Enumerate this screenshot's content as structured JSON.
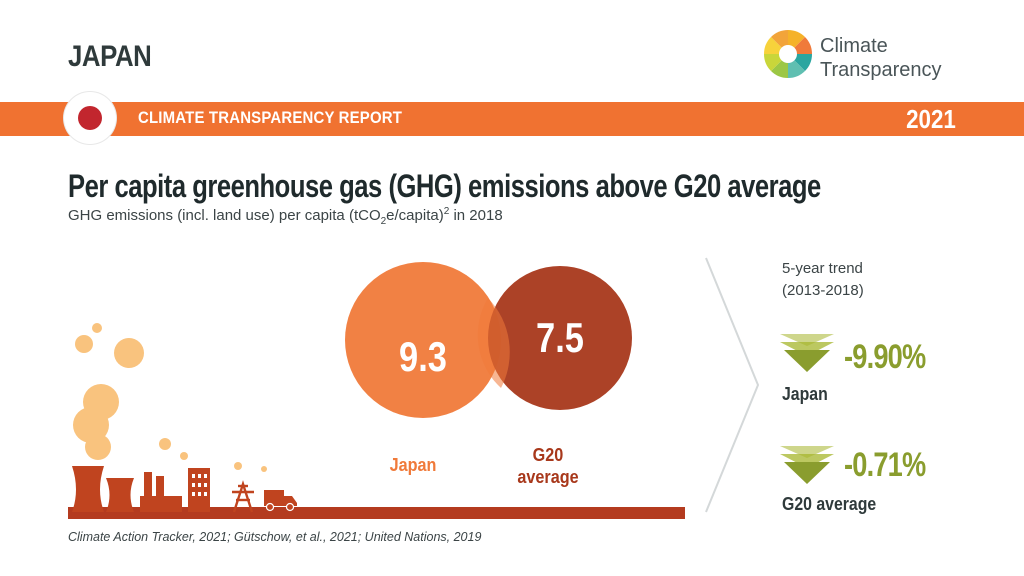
{
  "header": {
    "country": "JAPAN",
    "logo_line1": "Climate",
    "logo_line2": "Transparency",
    "report_label": "CLIMATE TRANSPARENCY REPORT",
    "year": "2021"
  },
  "headline": "Per capita greenhouse gas (GHG) emissions above G20 average",
  "subtitle": {
    "before": "GHG emissions (incl. land use) per capita (tCO",
    "sub": "2",
    "middle": "e/capita)",
    "sup": "2",
    "after": " in 2018"
  },
  "comparison": {
    "japan": {
      "value": "9.3",
      "label": "Japan",
      "color": "#f07a3a"
    },
    "g20": {
      "value": "7.5",
      "label_line1": "G20",
      "label_line2": "average",
      "color": "#a8381b"
    }
  },
  "trend": {
    "title_line1": "5-year trend",
    "title_line2": "(2013-2018)",
    "items": [
      {
        "value": "-9.90%",
        "name": "Japan",
        "icon": "trend-down-icon"
      },
      {
        "value": "-0.71%",
        "name": "G20 average",
        "icon": "trend-down-icon"
      }
    ],
    "color": "#8a9d2e"
  },
  "source": "Climate Action Tracker, 2021; Gütschow, et al., 2021; United Nations, 2019"
}
